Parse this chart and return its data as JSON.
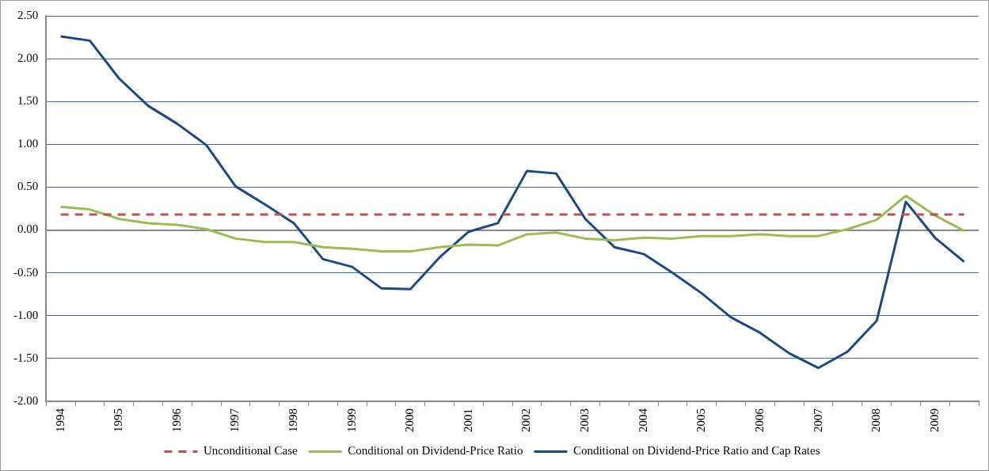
{
  "chart_data": {
    "type": "line",
    "categories": [
      "1994",
      null,
      "1995",
      null,
      "1996",
      null,
      "1997",
      null,
      "1998",
      null,
      "1999",
      null,
      "2000",
      null,
      "2001",
      null,
      "2002",
      null,
      "2003",
      null,
      "2004",
      null,
      "2005",
      null,
      "2006",
      null,
      "2007",
      null,
      "2008",
      null,
      "2009",
      null
    ],
    "series": [
      {
        "name": "Unconditional Case",
        "color": "#c0504d",
        "line_style": "dashed",
        "values": [
          0.18,
          0.18,
          0.18,
          0.18,
          0.18,
          0.18,
          0.18,
          0.18,
          0.18,
          0.18,
          0.18,
          0.18,
          0.18,
          0.18,
          0.18,
          0.18,
          0.18,
          0.18,
          0.18,
          0.18,
          0.18,
          0.18,
          0.18,
          0.18,
          0.18,
          0.18,
          0.18,
          0.18,
          0.18,
          0.18,
          0.18,
          0.18
        ]
      },
      {
        "name": "Conditional on Dividend-Price Ratio",
        "color": "#9bbb59",
        "line_style": "solid",
        "values": [
          0.27,
          0.24,
          0.13,
          0.08,
          0.06,
          0.01,
          -0.1,
          -0.14,
          -0.14,
          -0.2,
          -0.22,
          -0.25,
          -0.25,
          -0.2,
          -0.17,
          -0.18,
          -0.05,
          -0.03,
          -0.1,
          -0.12,
          -0.09,
          -0.1,
          -0.07,
          -0.07,
          -0.05,
          -0.07,
          -0.07,
          0.01,
          0.12,
          0.4,
          0.17,
          -0.01
        ]
      },
      {
        "name": "Conditional on Dividend-Price Ratio and Cap Rates",
        "color": "#1f497d",
        "line_style": "solid",
        "values": [
          2.26,
          2.21,
          1.77,
          1.45,
          1.24,
          0.99,
          0.51,
          0.3,
          0.08,
          -0.34,
          -0.43,
          -0.68,
          -0.69,
          -0.32,
          -0.02,
          0.08,
          0.69,
          0.66,
          0.13,
          -0.2,
          -0.28,
          -0.5,
          -0.74,
          -1.02,
          -1.2,
          -1.44,
          -1.61,
          -1.42,
          -1.06,
          0.33,
          -0.09,
          -0.37
        ]
      }
    ],
    "ylim": [
      -2,
      2.5
    ],
    "yticks": [
      {
        "value": -2,
        "label": "-2.00"
      },
      {
        "value": -1.5,
        "label": "-1.50"
      },
      {
        "value": -1,
        "label": "-1.00"
      },
      {
        "value": -0.5,
        "label": "-0.50"
      },
      {
        "value": 0,
        "label": "0.00"
      },
      {
        "value": 0.5,
        "label": "0.50"
      },
      {
        "value": 1,
        "label": "1.00"
      },
      {
        "value": 1.5,
        "label": "1.50"
      },
      {
        "value": 2,
        "label": "2.00"
      },
      {
        "value": 2.5,
        "label": "2.50"
      }
    ],
    "grid": "y",
    "legend": "bottom",
    "marker": "none"
  }
}
